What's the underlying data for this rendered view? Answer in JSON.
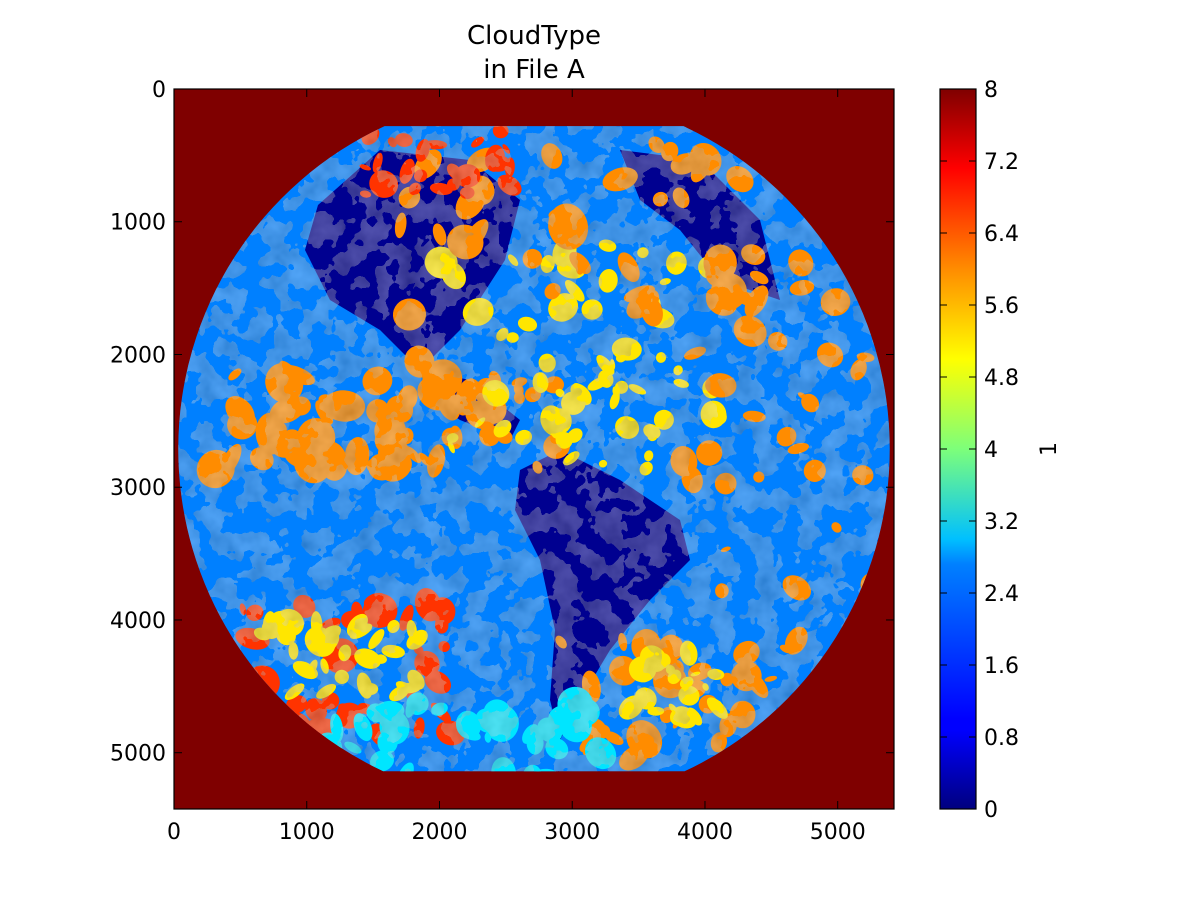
{
  "chart_data": {
    "type": "heatmap",
    "title_lines": [
      "CloudType",
      "in File A"
    ],
    "xlabel": "",
    "ylabel": "",
    "xlim": [
      0,
      5424
    ],
    "ylim": [
      5424,
      0
    ],
    "y_inverted": true,
    "x_ticks": [
      0,
      1000,
      2000,
      3000,
      4000,
      5000
    ],
    "x_tick_labels": [
      "0",
      "1000",
      "2000",
      "3000",
      "4000",
      "5000"
    ],
    "y_ticks": [
      0,
      1000,
      2000,
      3000,
      4000,
      5000
    ],
    "y_tick_labels": [
      "0",
      "1000",
      "2000",
      "3000",
      "4000",
      "5000"
    ],
    "grid": false,
    "colormap": "jet",
    "value_range": [
      0,
      8
    ],
    "background_value": 8,
    "disk": {
      "center_x": 2712,
      "center_y": 2712,
      "radius": 2680,
      "top_cut": 280,
      "bottom_cut": 5140
    },
    "colorbar": {
      "label": "1",
      "ticks": [
        0,
        0.8,
        1.6,
        2.4,
        3.2,
        4,
        4.8,
        5.6,
        6.4,
        7.2,
        8
      ],
      "tick_labels": [
        "0",
        "0.8",
        "1.6",
        "2.4",
        "3.2",
        "4",
        "4.8",
        "5.6",
        "6.4",
        "7.2",
        "8"
      ]
    },
    "colors": {
      "background": "#7f0000",
      "clear_ocean": "#0080ff",
      "clear_land": "#000090",
      "water_cloud": "#ff8c00",
      "cold_cloud": "#ff3300",
      "deep_cloud": "#ffe600",
      "overlap": "#00e5ff"
    }
  }
}
